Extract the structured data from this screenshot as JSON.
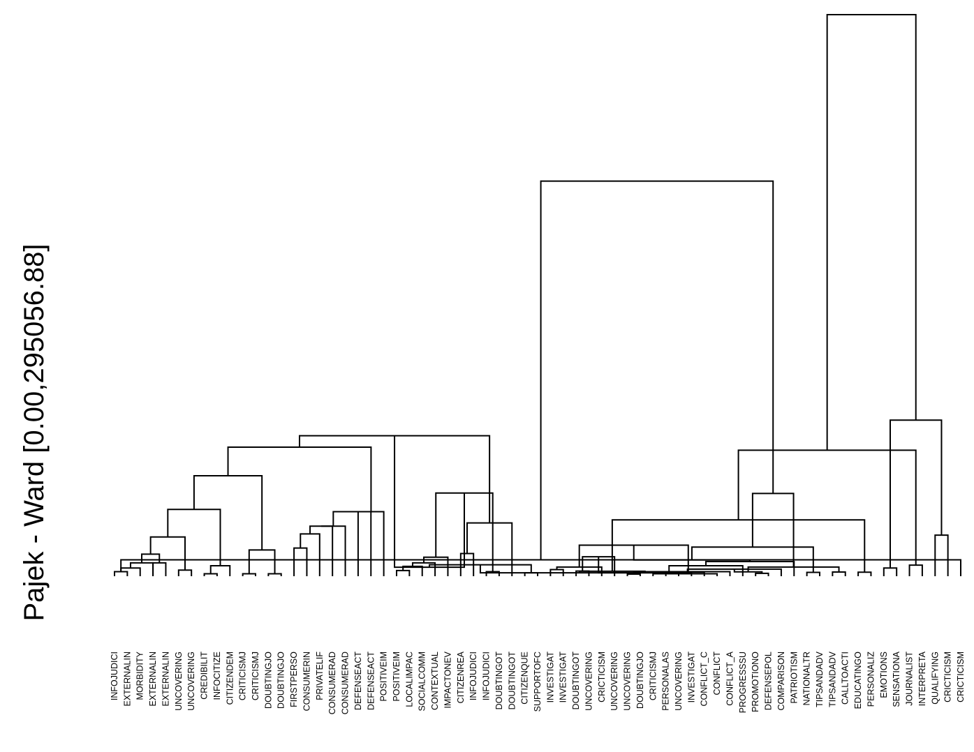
{
  "figure": {
    "y_axis_label": "Pajek - Ward [0.00,295056.88]",
    "height_range": [
      0.0,
      295056.88
    ]
  },
  "leaves": [
    "INFOJUDICI",
    "EXTERNALIN",
    "MORBIDITY",
    "EXTERNALIN",
    "EXTERNALIN",
    "UNCOVERING",
    "UNCOVERING",
    "CREDIBILIT",
    "INFOCITIZE",
    "CITIZENDEM",
    "CRITICISMJ",
    "CRITICISMJ",
    "DOUBTINGJO",
    "DOUBTINGJO",
    "FIRSTPERSO",
    "CONSUMERIN",
    "PRIVATELIF",
    "CONSUMERAD",
    "CONSUMERAD",
    "DEFENSEACT",
    "DEFENSEACT",
    "POSITIVEIM",
    "POSITIVEIM",
    "LOCALIMPAC",
    "SOCIALCOMM",
    "CONTEXTUAL",
    "IMPACTONEV",
    "CITIZENREA",
    "INFOJUDICI",
    "INFOJUDICI",
    "DOUBTINGOT",
    "DOUBTINGOT",
    "CITIZENQUE",
    "SUPPORTOFC",
    "INVESTIGAT",
    "INVESTIGAT",
    "DOUBTINGOT",
    "UNCOVERING",
    "CRICTICISM",
    "UNCOVERING",
    "UNCOVERING",
    "DOUBTINGJO",
    "CRITICISMJ",
    "PERSONALAS",
    "UNCOVERING",
    "INVESTIGAT",
    "CONFLICT_C",
    "CONFLICT",
    "CONFLICT_A",
    "PROGRESSSU",
    "PROMOTIONO",
    "DEFENSEPOL",
    "COMPARISON",
    "PATRIOTISM",
    "NATIONALTR",
    "TIPSANDADV",
    "TIPSANDADV",
    "CALLTOACTI",
    "EDUCATINGO",
    "PERSONALIZ",
    "EMOTIONS",
    "SENSATIONA",
    "JOURNALIST",
    "INTERPRETA",
    "QUALIFYING",
    "CRICTICISM",
    "CRICTICISM"
  ],
  "merges": [
    [
      0,
      1,
      2400
    ],
    [
      67,
      2,
      4300
    ],
    [
      68,
      3,
      7000
    ],
    [
      3,
      4,
      7000
    ],
    [
      70,
      69,
      11600
    ],
    [
      5,
      6,
      3200
    ],
    [
      71,
      72,
      20600
    ],
    [
      7,
      8,
      1300
    ],
    [
      74,
      9,
      5500
    ],
    [
      73,
      75,
      35100
    ],
    [
      10,
      11,
      1300
    ],
    [
      12,
      13,
      1300
    ],
    [
      77,
      78,
      13800
    ],
    [
      76,
      79,
      52800
    ],
    [
      14,
      15,
      14800
    ],
    [
      81,
      16,
      22200
    ],
    [
      82,
      17,
      26300
    ],
    [
      83,
      18,
      26300
    ],
    [
      84,
      19,
      33900
    ],
    [
      85,
      20,
      33900
    ],
    [
      86,
      21,
      33900
    ],
    [
      80,
      87,
      67800
    ],
    [
      22,
      23,
      3000
    ],
    [
      24,
      89,
      5200
    ],
    [
      90,
      25,
      7000
    ],
    [
      91,
      26,
      10000
    ],
    [
      27,
      28,
      11900
    ],
    [
      29,
      30,
      2400
    ],
    [
      93,
      31,
      28000
    ],
    [
      92,
      94,
      43700
    ],
    [
      88,
      95,
      73800
    ],
    [
      32,
      33,
      1800
    ],
    [
      34,
      35,
      3500
    ],
    [
      96,
      97,
      4700
    ],
    [
      36,
      37,
      2700
    ],
    [
      38,
      99,
      4800
    ],
    [
      98,
      100,
      6000
    ],
    [
      101,
      39,
      10200
    ],
    [
      40,
      41,
      1100
    ],
    [
      42,
      43,
      1300
    ],
    [
      103,
      44,
      1800
    ],
    [
      104,
      45,
      1800
    ],
    [
      105,
      46,
      2100
    ],
    [
      106,
      47,
      1300
    ],
    [
      107,
      108,
      2600
    ],
    [
      108,
      48,
      2400
    ],
    [
      109,
      49,
      5500
    ],
    [
      102,
      110,
      16300
    ],
    [
      50,
      51,
      1500
    ],
    [
      112,
      52,
      3700
    ],
    [
      113,
      53,
      7700
    ],
    [
      54,
      55,
      2000
    ],
    [
      56,
      57,
      2200
    ],
    [
      115,
      116,
      2300
    ],
    [
      114,
      117,
      8500
    ],
    [
      58,
      59,
      2100
    ],
    [
      60,
      61,
      4300
    ],
    [
      119,
      120,
      4800
    ],
    [
      118,
      121,
      15300
    ],
    [
      111,
      122,
      29600
    ],
    [
      62,
      63,
      5800
    ],
    [
      64,
      65,
      21600
    ],
    [
      124,
      125,
      43500
    ],
    [
      66,
      67,
      8600
    ],
    [
      126,
      127,
      66200
    ],
    [
      123,
      128,
      82000
    ],
    [
      129,
      130,
      207600
    ],
    [
      131,
      132,
      295056.88
    ]
  ]
}
